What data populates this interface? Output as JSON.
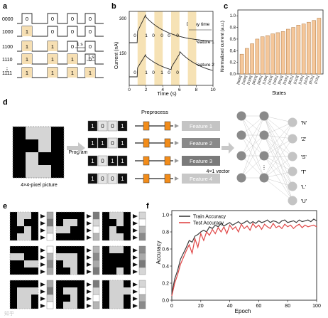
{
  "panel_labels": {
    "a": "a",
    "b": "b",
    "c": "c",
    "d": "d",
    "e": "e",
    "f": "f"
  },
  "panel_a": {
    "row_labels": [
      "0000",
      "1000",
      "1100",
      "1110",
      "1111"
    ],
    "dots": "⋮",
    "cells": [
      [
        "0",
        "0",
        "0",
        "0"
      ],
      [
        "1",
        "0",
        "0",
        "0"
      ],
      [
        "1",
        "1",
        "0",
        "0"
      ],
      [
        "1",
        "1",
        "1",
        "0"
      ],
      [
        "1",
        "1",
        "1",
        "1"
      ]
    ],
    "annot_1s_a": "1 s",
    "annot_1s_b": "1 s"
  },
  "panel_b": {
    "ylabel": "Current (nA)",
    "xlabel": "Time (s)",
    "xticks": [
      "0",
      "2",
      "4",
      "6",
      "8",
      "10"
    ],
    "ytick_top": "300",
    "ytick_bottom": "150",
    "decay_label": "Decay time",
    "feature1_label": "Feature 1",
    "feature2_label": "Feature 2",
    "bits_top": [
      "0",
      "1",
      "0",
      "0",
      "0",
      "0"
    ],
    "bits_bottom": [
      "0",
      "1",
      "0",
      "1",
      "0",
      "0"
    ]
  },
  "panel_c": {
    "ylabel": "Normalized current (a.u.)",
    "xlabel": "States",
    "yticks": [
      "0.0",
      "0.2",
      "0.4",
      "0.6",
      "0.8",
      "1.0"
    ],
    "bar_color": "#f5c79a",
    "bar_edge": "#b07a45"
  },
  "panel_d": {
    "pixel_caption": "4×4-pixel picture",
    "program_label": "Program",
    "preprocess_label": "Preprocess",
    "vector_caption": "4×1 vector",
    "codes": [
      [
        "1",
        "0",
        "0",
        "1"
      ],
      [
        "1",
        "1",
        "0",
        "1"
      ],
      [
        "1",
        "0",
        "1",
        "1"
      ],
      [
        "1",
        "0",
        "0",
        "1"
      ]
    ],
    "features": [
      "Feature 1",
      "Feature 2",
      "Feature 3",
      "Feature 4"
    ],
    "feature_colors": [
      "#c4c4c4",
      "#8a8a8a",
      "#7a7a7a",
      "#c8c8c8"
    ],
    "classes": [
      "'N'",
      "'Z'",
      "'S'",
      "'T'",
      "'L'",
      "'U'"
    ],
    "nn_dots": "⋮"
  },
  "panel_f": {
    "legend": [
      "Train Accuracy",
      "Test Accuracy"
    ],
    "colors": [
      "#3c3c3c",
      "#e04646"
    ],
    "ylabel": "Accuracy",
    "xlabel": "Epoch",
    "xticks": [
      "0",
      "20",
      "40",
      "60",
      "80",
      "100"
    ],
    "yticks": [
      "0.0",
      "0.2",
      "0.4",
      "0.6",
      "0.8",
      "1.0"
    ]
  },
  "watermark": "知乎",
  "chart_data": [
    {
      "type": "bar",
      "panel": "c",
      "categories": [
        "[0000]",
        "[1000]",
        "[0100]",
        "[0010]",
        "[0001]",
        "[1100]",
        "[1010]",
        "[1001]",
        "[0110]",
        "[0101]",
        "[0011]",
        "[1110]",
        "[1101]",
        "[1011]",
        "[0111]",
        "[1111]"
      ],
      "values": [
        0.34,
        0.44,
        0.52,
        0.6,
        0.64,
        0.66,
        0.69,
        0.71,
        0.73,
        0.77,
        0.8,
        0.84,
        0.86,
        0.89,
        0.92,
        0.96
      ],
      "xlabel": "States",
      "ylabel": "Normalized current (a.u.)",
      "ylim": [
        0,
        1.1
      ]
    },
    {
      "type": "line",
      "panel": "f",
      "xlabel": "Epoch",
      "ylabel": "Accuracy",
      "xlim": [
        0,
        100
      ],
      "ylim": [
        0,
        1.05
      ],
      "legend_position": "top-left",
      "series": [
        {
          "name": "Train Accuracy",
          "x": [
            0,
            2,
            4,
            6,
            8,
            10,
            12,
            14,
            16,
            18,
            20,
            22,
            24,
            26,
            28,
            30,
            32,
            34,
            36,
            38,
            40,
            42,
            44,
            46,
            48,
            50,
            52,
            54,
            56,
            58,
            60,
            62,
            64,
            66,
            68,
            70,
            72,
            74,
            76,
            78,
            80,
            82,
            84,
            86,
            88,
            90,
            92,
            94,
            96,
            98,
            100
          ],
          "values": [
            0.08,
            0.25,
            0.35,
            0.48,
            0.55,
            0.62,
            0.7,
            0.68,
            0.75,
            0.77,
            0.8,
            0.82,
            0.8,
            0.86,
            0.84,
            0.88,
            0.86,
            0.9,
            0.87,
            0.89,
            0.91,
            0.88,
            0.9,
            0.92,
            0.89,
            0.91,
            0.93,
            0.9,
            0.92,
            0.9,
            0.93,
            0.91,
            0.92,
            0.94,
            0.91,
            0.93,
            0.92,
            0.9,
            0.93,
            0.94,
            0.91,
            0.92,
            0.93,
            0.91,
            0.94,
            0.92,
            0.93,
            0.94,
            0.92,
            0.95,
            0.93
          ]
        },
        {
          "name": "Test Accuracy",
          "x": [
            0,
            2,
            4,
            6,
            8,
            10,
            12,
            14,
            16,
            18,
            20,
            22,
            24,
            26,
            28,
            30,
            32,
            34,
            36,
            38,
            40,
            42,
            44,
            46,
            48,
            50,
            52,
            54,
            56,
            58,
            60,
            62,
            64,
            66,
            68,
            70,
            72,
            74,
            76,
            78,
            80,
            82,
            84,
            86,
            88,
            90,
            92,
            94,
            96,
            98,
            100
          ],
          "values": [
            0.05,
            0.2,
            0.3,
            0.42,
            0.5,
            0.58,
            0.65,
            0.55,
            0.72,
            0.62,
            0.78,
            0.7,
            0.8,
            0.76,
            0.83,
            0.78,
            0.85,
            0.8,
            0.86,
            0.78,
            0.88,
            0.83,
            0.86,
            0.8,
            0.89,
            0.84,
            0.87,
            0.82,
            0.9,
            0.85,
            0.88,
            0.83,
            0.89,
            0.86,
            0.84,
            0.9,
            0.85,
            0.87,
            0.84,
            0.89,
            0.86,
            0.88,
            0.84,
            0.87,
            0.89,
            0.85,
            0.88,
            0.86,
            0.87,
            0.88,
            0.86
          ]
        }
      ]
    }
  ]
}
